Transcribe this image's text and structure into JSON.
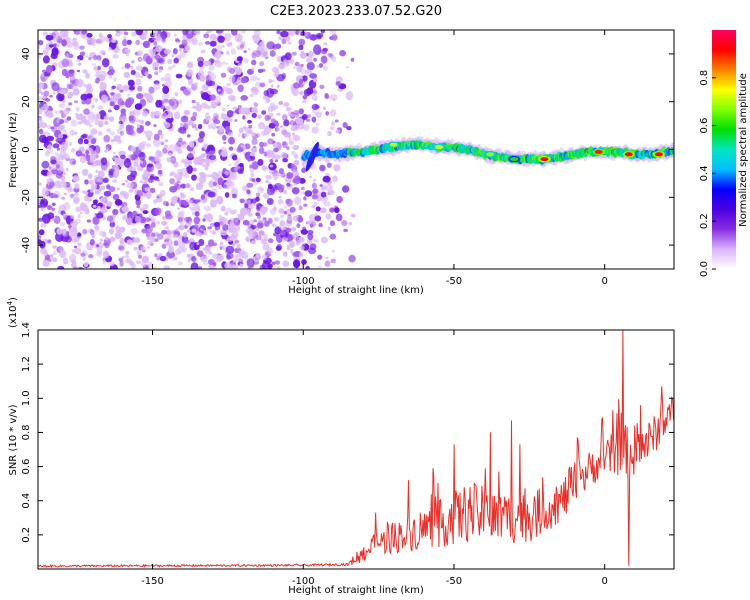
{
  "title": "C2E3.2023.233.07.52.G20",
  "chart_data": [
    {
      "type": "heatmap",
      "name": "spectrogram",
      "xlabel": "Height of straight line (km)",
      "ylabel": "Frequency (Hz)",
      "xlim": [
        -188,
        23
      ],
      "ylim": [
        -50,
        50
      ],
      "xticks": [
        -150,
        -100,
        -50,
        0
      ],
      "xtick_labels": [
        "-150",
        "-100",
        "-50",
        "0"
      ],
      "yticks": [
        -40,
        -20,
        0,
        20,
        40
      ],
      "ytick_labels": [
        "-40",
        "-20",
        "0",
        "20",
        "40"
      ],
      "noise_region_x": [
        -188,
        -82
      ],
      "signal_region_x": [
        -100,
        23
      ],
      "signal_track": {
        "x": [
          -100,
          -95,
          -90,
          -85,
          -80,
          -75,
          -70,
          -65,
          -60,
          -55,
          -50,
          -45,
          -40,
          -35,
          -30,
          -25,
          -20,
          -15,
          -10,
          -5,
          0,
          5,
          10,
          15,
          20,
          23
        ],
        "freq": [
          -3,
          -1,
          -2,
          -1,
          -1,
          0,
          1,
          2,
          2,
          1,
          1,
          0,
          -2,
          -3,
          -4,
          -4,
          -4,
          -3,
          -2,
          -1,
          -1,
          -1,
          -2,
          -2,
          -1,
          -1
        ]
      },
      "peaks": [
        {
          "x": -20,
          "freq": -4,
          "amp": 0.95
        },
        {
          "x": -2,
          "freq": -1,
          "amp": 0.9
        },
        {
          "x": 8,
          "freq": -2,
          "amp": 0.92
        },
        {
          "x": 18,
          "freq": -2,
          "amp": 0.93
        },
        {
          "x": -55,
          "freq": 1,
          "amp": 0.72
        },
        {
          "x": -70,
          "freq": 2,
          "amp": 0.7
        },
        {
          "x": -38,
          "freq": -2,
          "amp": 0.68
        },
        {
          "x": -30,
          "freq": -4,
          "amp": 0.6
        }
      ]
    },
    {
      "type": "colorbar",
      "name": "amplitude-colorbar",
      "label": "Normalized spectral amplitude",
      "range": [
        0,
        1
      ],
      "ticks": [
        0.0,
        0.2,
        0.4,
        0.6,
        0.8
      ],
      "tick_labels": [
        "0.0",
        "0.2",
        "0.4",
        "0.6",
        "0.8"
      ],
      "colormap": [
        "#ffffff",
        "#d9b3ff",
        "#8a2be2",
        "#4b00e0",
        "#0000ff",
        "#00bfff",
        "#00e5c0",
        "#00e000",
        "#80ff00",
        "#ffff00",
        "#ff8000",
        "#ff0000",
        "#ff0060"
      ]
    },
    {
      "type": "line",
      "name": "snr-line",
      "xlabel": "Height of straight line (km)",
      "ylabel": "SNR (10 * v/v)",
      "scale_label": "(x10",
      "scale_exp": "4",
      "scale_close": ")",
      "xlim": [
        -188,
        23
      ],
      "ylim": [
        0,
        14000
      ],
      "xticks": [
        -150,
        -100,
        -50,
        0
      ],
      "xtick_labels": [
        "-150",
        "-100",
        "-50",
        "0"
      ],
      "yticks": [
        2000,
        4000,
        6000,
        8000,
        10000,
        12000,
        14000
      ],
      "ytick_labels": [
        "0.2",
        "0.4",
        "0.6",
        "0.8",
        "1.0",
        "1.2",
        "1.4"
      ],
      "color": "#e8302a",
      "envelope": {
        "x": [
          -188,
          -100,
          -85,
          -82,
          -75,
          -65,
          -55,
          -45,
          -35,
          -25,
          -15,
          -10,
          -5,
          0,
          5,
          10,
          15,
          20,
          23
        ],
        "base": [
          150,
          200,
          250,
          600,
          1300,
          1800,
          2200,
          2800,
          2500,
          2600,
          3500,
          4500,
          5500,
          6200,
          6500,
          6400,
          7200,
          8300,
          9200
        ],
        "spread": [
          120,
          120,
          150,
          900,
          1500,
          2200,
          2800,
          3600,
          3200,
          3000,
          2400,
          2800,
          2200,
          2000,
          3000,
          3200,
          2400,
          2000,
          1600
        ]
      },
      "spikes": [
        {
          "x": -76,
          "y": 3300
        },
        {
          "x": -65,
          "y": 5200
        },
        {
          "x": -57,
          "y": 5900
        },
        {
          "x": -50,
          "y": 7300
        },
        {
          "x": -38,
          "y": 8000
        },
        {
          "x": -31,
          "y": 8700
        },
        {
          "x": -28,
          "y": 7300
        },
        {
          "x": -9,
          "y": 7700
        },
        {
          "x": -1,
          "y": 8800
        },
        {
          "x": 6,
          "y": 14000
        },
        {
          "x": 8,
          "y": 200
        },
        {
          "x": 12,
          "y": 9600
        },
        {
          "x": 19,
          "y": 10700
        }
      ]
    }
  ]
}
